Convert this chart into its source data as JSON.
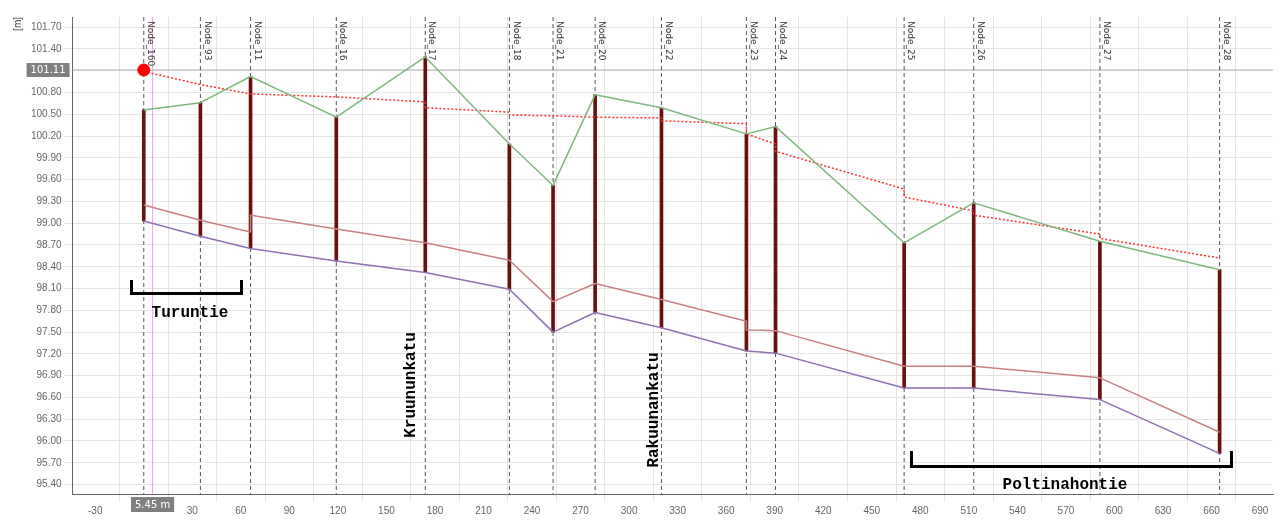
{
  "chart_data": {
    "type": "line",
    "ylabel": "[m]",
    "x": [
      0,
      35,
      66,
      119,
      174,
      226,
      253,
      279,
      320,
      372.5,
      390.5,
      470,
      513,
      591,
      665
    ],
    "series": [
      {
        "type": "bar",
        "color": "#6b1010",
        "base": [
          99.03,
          98.82,
          98.65,
          98.48,
          98.32,
          98.09,
          97.5,
          97.77,
          97.56,
          97.24,
          97.21,
          96.73,
          96.73,
          96.57,
          95.83
        ],
        "values": [
          1.53,
          1.84,
          2.37,
          1.98,
          2.97,
          2.0,
          2.02,
          3.0,
          3.03,
          2.99,
          3.12,
          2.0,
          2.55,
          2.18,
          2.53
        ]
      },
      {
        "color": "#7fb77e",
        "values": [
          100.56,
          100.66,
          101.02,
          100.46,
          101.29,
          100.09,
          99.52,
          100.77,
          100.59,
          100.23,
          100.33,
          98.73,
          99.28,
          98.75,
          98.36
        ]
      },
      {
        "color": "#c98080",
        "x": [
          0,
          35,
          66,
          66,
          119,
          174,
          226,
          253,
          279,
          320,
          372.5,
          372.5,
          390.5,
          470,
          513,
          591,
          665
        ],
        "values": [
          99.25,
          99.04,
          98.88,
          99.11,
          98.92,
          98.73,
          98.49,
          97.92,
          98.17,
          97.95,
          97.65,
          97.53,
          97.52,
          97.03,
          97.03,
          96.87,
          96.12
        ]
      },
      {
        "color": "#8f70b0",
        "values": [
          99.03,
          98.82,
          98.65,
          98.48,
          98.32,
          98.09,
          97.5,
          97.77,
          97.56,
          97.24,
          97.21,
          96.73,
          96.73,
          96.57,
          95.83
        ]
      },
      {
        "color": "#ff3030",
        "line_style": "dotted",
        "x": [
          0,
          35,
          66,
          119,
          174,
          174,
          226,
          226,
          253,
          279,
          320,
          320,
          372.5,
          372.5,
          390.5,
          390.5,
          470,
          470,
          513,
          513,
          591,
          591,
          665
        ],
        "values": [
          101.09,
          100.91,
          100.78,
          100.74,
          100.67,
          100.59,
          100.53,
          100.49,
          100.48,
          100.46,
          100.45,
          100.41,
          100.37,
          100.23,
          100.09,
          99.99,
          99.47,
          99.36,
          99.17,
          99.11,
          98.85,
          98.79,
          98.52
        ]
      },
      {
        "type": "scatter",
        "color": "#ff0000",
        "marker": "circle",
        "x": [
          0
        ],
        "values": [
          101.11
        ]
      }
    ],
    "xlim": [
      -44,
      698
    ],
    "ylim": [
      95.27,
      101.84
    ],
    "xticks": [
      -30,
      {
        "value": 0,
        "label": null
      },
      30,
      60,
      90,
      120,
      150,
      180,
      210,
      240,
      270,
      300,
      330,
      360,
      390,
      420,
      450,
      480,
      510,
      540,
      570,
      600,
      630,
      660,
      690
    ],
    "yticks": [
      {
        "value": 95.4,
        "label": "95.40"
      },
      {
        "value": 95.7,
        "label": "95.70"
      },
      {
        "value": 96.0,
        "label": "96.00"
      },
      {
        "value": 96.3,
        "label": "96.30"
      },
      {
        "value": 96.6,
        "label": "96.60"
      },
      {
        "value": 96.9,
        "label": "96.90"
      },
      {
        "value": 97.2,
        "label": "97.20"
      },
      {
        "value": 97.5,
        "label": "97.50"
      },
      {
        "value": 97.8,
        "label": "97.80"
      },
      {
        "value": 98.1,
        "label": "98.10"
      },
      {
        "value": 98.4,
        "label": "98.40"
      },
      {
        "value": 98.7,
        "label": "98.70"
      },
      {
        "value": 99.0,
        "label": "99.00"
      },
      {
        "value": 99.3,
        "label": "99.30"
      },
      {
        "value": 99.6,
        "label": "99.60"
      },
      {
        "value": 99.9,
        "label": "99.90"
      },
      {
        "value": 100.2,
        "label": "100.20"
      },
      {
        "value": 100.5,
        "label": "100.50"
      },
      {
        "value": 100.8,
        "label": "100.80"
      },
      {
        "value": 101.1,
        "label": null
      },
      {
        "value": 101.4,
        "label": "101.40"
      },
      {
        "value": 101.7,
        "label": "101.70"
      }
    ],
    "grid": true,
    "ref_lines": [
      {
        "axis": "x",
        "value": 5.45,
        "label": "5.45 m",
        "color": "#f0a0f0",
        "line_style": "solid"
      },
      {
        "axis": "y",
        "value": 101.11,
        "label": "101.11",
        "color": "#b0b0b0",
        "line_style": "solid"
      },
      {
        "axis": "x",
        "value": 0,
        "label": "Node_160",
        "color": "#555555",
        "line_style": "dashed"
      },
      {
        "axis": "x",
        "value": 35,
        "label": "Node_93",
        "color": "#555555",
        "line_style": "dashed"
      },
      {
        "axis": "x",
        "value": 66,
        "label": "Node_11",
        "color": "#555555",
        "line_style": "dashed"
      },
      {
        "axis": "x",
        "value": 119,
        "label": "Node_16",
        "color": "#555555",
        "line_style": "dashed"
      },
      {
        "axis": "x",
        "value": 174,
        "label": "Node_17",
        "color": "#555555",
        "line_style": "dashed"
      },
      {
        "axis": "x",
        "value": 226,
        "label": "Node_18",
        "color": "#555555",
        "line_style": "dashed"
      },
      {
        "axis": "x",
        "value": 253,
        "label": "Node_21",
        "color": "#555555",
        "line_style": "dashed"
      },
      {
        "axis": "x",
        "value": 279,
        "label": "Node_20",
        "color": "#555555",
        "line_style": "dashed"
      },
      {
        "axis": "x",
        "value": 320,
        "label": "Node_22",
        "color": "#555555",
        "line_style": "dashed"
      },
      {
        "axis": "x",
        "value": 372.5,
        "label": "Node_23",
        "color": "#555555",
        "line_style": "dashed"
      },
      {
        "axis": "x",
        "value": 390.5,
        "label": "Node_24",
        "color": "#555555",
        "line_style": "dashed"
      },
      {
        "axis": "x",
        "value": 470,
        "label": "Node_25",
        "color": "#555555",
        "line_style": "dashed"
      },
      {
        "axis": "x",
        "value": 513,
        "label": "Node_26",
        "color": "#555555",
        "line_style": "dashed"
      },
      {
        "axis": "x",
        "value": 591,
        "label": "Node_27",
        "color": "#555555",
        "line_style": "dashed"
      },
      {
        "axis": "x",
        "value": 665,
        "label": "Node_28",
        "color": "#555555",
        "line_style": "dashed"
      }
    ],
    "annotations": [
      "Turuntie",
      "Kruununkatu",
      "Rakuunankatu",
      "Poltinahontie"
    ]
  }
}
